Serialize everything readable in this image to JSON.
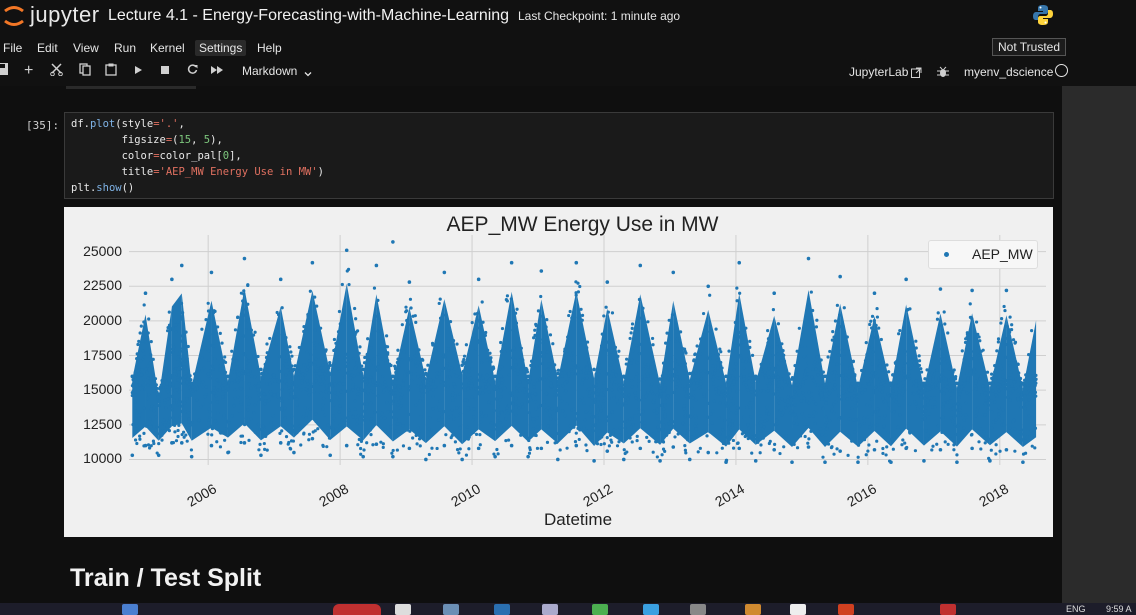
{
  "header": {
    "brand": "jupyter",
    "notebook_title": "Lecture 4.1 - Energy-Forecasting-with-Machine-Learning",
    "checkpoint": "Last Checkpoint: 1 minute ago"
  },
  "menu": {
    "items": [
      "File",
      "Edit",
      "View",
      "Run",
      "Kernel",
      "Settings",
      "Help"
    ],
    "trust_status": "Not Trusted"
  },
  "toolbar": {
    "cell_type": "Markdown",
    "jupyterlab_label": "JupyterLab",
    "kernel_name": "myenv_dscience",
    "icons": [
      "save-icon",
      "add-cell-icon",
      "cut-icon",
      "copy-icon",
      "paste-icon",
      "run-icon",
      "stop-icon",
      "restart-icon",
      "fast-forward-icon"
    ]
  },
  "cell": {
    "prompt": "[35]:"
  },
  "section_heading": "Train / Test Split",
  "taskbar": {
    "lang": "ENG",
    "time": "9:59 A"
  },
  "colors": {
    "series": "#1f77b4",
    "chart_bg": "#f0f0f0",
    "page_bg": "#111111"
  },
  "chart_data": {
    "type": "scatter",
    "title": "AEP_MW Energy Use in MW",
    "xlabel": "Datetime",
    "ylabel": "",
    "legend": {
      "entries": [
        "AEP_MW"
      ],
      "placement": "top-right"
    },
    "grid": true,
    "xlim": [
      2004.8,
      2018.7
    ],
    "ylim": [
      9600,
      26200
    ],
    "x_ticks": [
      "2006",
      "2008",
      "2010",
      "2012",
      "2014",
      "2016",
      "2018"
    ],
    "y_ticks": [
      "10000",
      "12500",
      "15000",
      "17500",
      "20000",
      "22500",
      "25000"
    ],
    "series": [
      {
        "name": "AEP_MW",
        "x": [
          2004.85,
          2005.05,
          2005.25,
          2005.45,
          2005.6,
          2005.75,
          2006.05,
          2006.3,
          2006.55,
          2006.8,
          2007.1,
          2007.3,
          2007.58,
          2007.85,
          2008.1,
          2008.35,
          2008.55,
          2008.8,
          2009.05,
          2009.3,
          2009.58,
          2009.85,
          2010.1,
          2010.35,
          2010.6,
          2010.85,
          2011.05,
          2011.3,
          2011.58,
          2011.85,
          2012.05,
          2012.3,
          2012.55,
          2012.85,
          2013.05,
          2013.3,
          2013.58,
          2013.85,
          2014.05,
          2014.3,
          2014.58,
          2014.85,
          2015.1,
          2015.35,
          2015.58,
          2015.85,
          2016.1,
          2016.35,
          2016.58,
          2016.85,
          2017.1,
          2017.35,
          2017.58,
          2017.85,
          2018.1,
          2018.35,
          2018.55
        ],
        "y_max": [
          16000,
          22000,
          14500,
          23000,
          24000,
          15500,
          23500,
          16000,
          24500,
          16500,
          23000,
          16500,
          24200,
          16800,
          25100,
          16500,
          24000,
          16000,
          22800,
          16200,
          23500,
          16800,
          23000,
          16000,
          24200,
          16000,
          23600,
          16200,
          24200,
          16500,
          22800,
          16000,
          24000,
          15800,
          23500,
          16200,
          22500,
          16000,
          24200,
          16000,
          22000,
          15800,
          24500,
          16000,
          23200,
          15500,
          22000,
          15500,
          23000,
          15500,
          22300,
          15500,
          22200,
          15500,
          22200,
          15500,
          21800
        ],
        "y_min": [
          10300,
          11000,
          10300,
          11200,
          11200,
          10200,
          11000,
          10500,
          11200,
          10300,
          11200,
          10500,
          11500,
          10300,
          11000,
          10200,
          11100,
          10200,
          10800,
          10000,
          11000,
          10000,
          10800,
          10200,
          11000,
          10200,
          10800,
          10000,
          11000,
          9900,
          10600,
          10000,
          10800,
          9900,
          10900,
          10000,
          10500,
          9800,
          10800,
          9900,
          10700,
          9800,
          10900,
          9800,
          10600,
          9800,
          10700,
          9800,
          10800,
          9900,
          10700,
          9800,
          10800,
          9900,
          10700,
          9800,
          10300
        ],
        "y_center": [
          15300,
          16500,
          14500,
          16000,
          16800,
          14800,
          16200,
          14800,
          16800,
          14600,
          16000,
          14800,
          17000,
          14700,
          16500,
          14900,
          16600,
          14600,
          16300,
          14700,
          16600,
          14400,
          16300,
          14700,
          16700,
          14500,
          16300,
          14600,
          16800,
          14200,
          16000,
          14600,
          16600,
          14500,
          16200,
          14600,
          16400,
          14300,
          16300,
          14500,
          16200,
          14200,
          16400,
          14200,
          16200,
          14300,
          16100,
          14400,
          16500,
          14300,
          16000,
          14300,
          16300,
          14400,
          15800,
          14200,
          15500
        ],
        "outliers": [
          {
            "x": 2008.8,
            "y": 25700
          }
        ]
      }
    ]
  }
}
